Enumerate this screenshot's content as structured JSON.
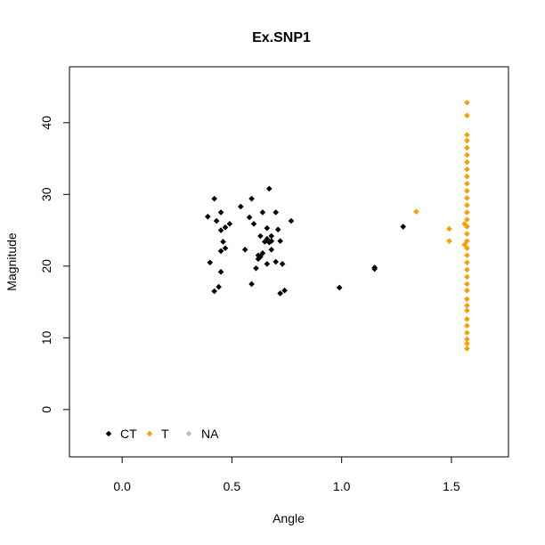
{
  "chart_data": {
    "type": "scatter",
    "title": "Ex.SNP1",
    "xlabel": "Angle",
    "ylabel": "Magnitude",
    "xlim": [
      -0.24,
      1.76
    ],
    "ylim": [
      -6.6,
      47.8
    ],
    "x_ticks": [
      0.0,
      0.5,
      1.0,
      1.5
    ],
    "x_tick_labels": [
      "0.0",
      "0.5",
      "1.0",
      "1.5"
    ],
    "y_ticks": [
      0,
      10,
      20,
      30,
      40
    ],
    "y_tick_labels": [
      "0",
      "10",
      "20",
      "30",
      "40"
    ],
    "grid": false,
    "legend_position": "bottom-left",
    "series": [
      {
        "name": "CT",
        "color": "#000000",
        "points": [
          [
            0.39,
            26.9
          ],
          [
            0.42,
            29.4
          ],
          [
            0.4,
            20.5
          ],
          [
            0.42,
            16.5
          ],
          [
            0.44,
            17.1
          ],
          [
            0.43,
            26.3
          ],
          [
            0.45,
            27.5
          ],
          [
            0.45,
            25.0
          ],
          [
            0.46,
            23.4
          ],
          [
            0.45,
            22.1
          ],
          [
            0.47,
            22.5
          ],
          [
            0.45,
            19.2
          ],
          [
            0.47,
            25.4
          ],
          [
            0.49,
            25.9
          ],
          [
            0.54,
            28.3
          ],
          [
            0.56,
            22.3
          ],
          [
            0.58,
            26.8
          ],
          [
            0.59,
            29.4
          ],
          [
            0.59,
            17.5
          ],
          [
            0.6,
            25.9
          ],
          [
            0.61,
            19.7
          ],
          [
            0.62,
            21.0
          ],
          [
            0.62,
            21.5
          ],
          [
            0.63,
            21.3
          ],
          [
            0.63,
            24.2
          ],
          [
            0.64,
            27.5
          ],
          [
            0.64,
            21.8
          ],
          [
            0.65,
            23.4
          ],
          [
            0.66,
            23.8
          ],
          [
            0.66,
            25.3
          ],
          [
            0.66,
            20.3
          ],
          [
            0.67,
            30.8
          ],
          [
            0.67,
            23.3
          ],
          [
            0.68,
            24.2
          ],
          [
            0.68,
            23.5
          ],
          [
            0.68,
            22.3
          ],
          [
            0.7,
            27.5
          ],
          [
            0.7,
            20.6
          ],
          [
            0.71,
            25.1
          ],
          [
            0.72,
            23.5
          ],
          [
            0.72,
            16.2
          ],
          [
            0.73,
            20.3
          ],
          [
            0.74,
            16.6
          ],
          [
            0.77,
            26.3
          ],
          [
            0.99,
            17.0
          ],
          [
            1.15,
            19.8
          ],
          [
            1.15,
            19.6
          ],
          [
            1.28,
            25.5
          ]
        ]
      },
      {
        "name": "T",
        "color": "#F5A100",
        "points": [
          [
            1.34,
            27.6
          ],
          [
            1.49,
            25.2
          ],
          [
            1.49,
            23.5
          ],
          [
            1.56,
            25.9
          ],
          [
            1.56,
            23.0
          ],
          [
            1.571,
            42.8
          ],
          [
            1.571,
            41.0
          ],
          [
            1.571,
            38.3
          ],
          [
            1.571,
            37.5
          ],
          [
            1.571,
            36.5
          ],
          [
            1.571,
            35.5
          ],
          [
            1.571,
            34.5
          ],
          [
            1.571,
            33.5
          ],
          [
            1.571,
            32.5
          ],
          [
            1.571,
            31.5
          ],
          [
            1.571,
            30.5
          ],
          [
            1.571,
            29.5
          ],
          [
            1.571,
            28.5
          ],
          [
            1.571,
            27.5
          ],
          [
            1.571,
            26.5
          ],
          [
            1.571,
            25.5
          ],
          [
            1.571,
            24.5
          ],
          [
            1.571,
            23.5
          ],
          [
            1.571,
            22.5
          ],
          [
            1.571,
            21.5
          ],
          [
            1.571,
            20.5
          ],
          [
            1.571,
            19.5
          ],
          [
            1.571,
            18.5
          ],
          [
            1.571,
            17.5
          ],
          [
            1.571,
            16.6
          ],
          [
            1.571,
            15.4
          ],
          [
            1.571,
            14.5
          ],
          [
            1.571,
            13.8
          ],
          [
            1.571,
            12.6
          ],
          [
            1.571,
            11.7
          ],
          [
            1.571,
            10.7
          ],
          [
            1.571,
            9.8
          ],
          [
            1.571,
            9.2
          ],
          [
            1.571,
            8.5
          ]
        ]
      },
      {
        "name": "NA",
        "color": "#BEBEBE",
        "points": []
      }
    ]
  }
}
